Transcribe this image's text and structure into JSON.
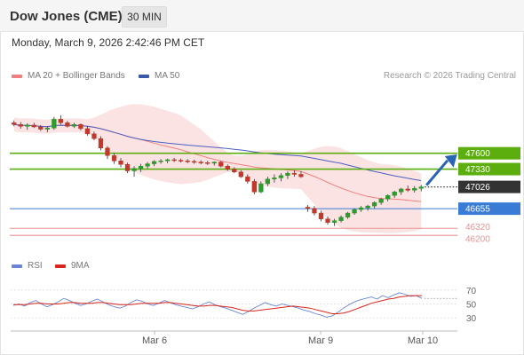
{
  "header": {
    "title": "Dow Jones (CME)",
    "timeframe_button": "30 MIN"
  },
  "datetime": "Monday, March 9, 2026 2:42:46 PM CET",
  "price_legend": {
    "bollinger_label": "MA 20 + Bollinger Bands",
    "ma50_label": "MA 50"
  },
  "copyright": "Research © 2026 Trading Central",
  "rsi_legend": {
    "rsi_label": "RSI",
    "ma_label": "9MA"
  },
  "colors": {
    "up_candle": "#2d9b2d",
    "down_candle": "#c0392b",
    "bollinger_fill": "#fcdede",
    "ma20": "#f08080",
    "ma50": "#4a5fc1",
    "green_level": "#5cad0e",
    "blue_level": "#3a7bd5",
    "red_level": "#e89494",
    "current_price_bg": "#333333",
    "forecast_arrow": "#2a64b4",
    "rsi_line": "#6b84d8",
    "rsi_ma": "#d9261c"
  },
  "chart_data": [
    {
      "type": "candlestick",
      "title": "Dow Jones (CME)",
      "timeframe": "30 MIN",
      "x_ticks": [
        "Mar 6",
        "Mar 9",
        "Mar 10"
      ],
      "ylim": [
        45900,
        48700
      ],
      "series": [
        {
          "name": "MA 20 + Bollinger Bands"
        },
        {
          "name": "MA 50"
        }
      ],
      "candles": [
        [
          48120,
          48160,
          48060,
          48090
        ],
        [
          48090,
          48130,
          48020,
          48060
        ],
        [
          48060,
          48110,
          48000,
          48080
        ],
        [
          48080,
          48120,
          48030,
          48050
        ],
        [
          48050,
          48080,
          47980,
          48010
        ],
        [
          48010,
          48060,
          47960,
          48030
        ],
        [
          48030,
          48220,
          48000,
          48180
        ],
        [
          48180,
          48250,
          48090,
          48120
        ],
        [
          48120,
          48150,
          48040,
          48060
        ],
        [
          48060,
          48120,
          48030,
          48090
        ],
        [
          48090,
          48110,
          47990,
          48020
        ],
        [
          48020,
          48060,
          47900,
          47930
        ],
        [
          47930,
          47970,
          47820,
          47850
        ],
        [
          47850,
          47890,
          47650,
          47690
        ],
        [
          47690,
          47720,
          47500,
          47560
        ],
        [
          47560,
          47600,
          47420,
          47470
        ],
        [
          47470,
          47520,
          47360,
          47410
        ],
        [
          47410,
          47440,
          47260,
          47300
        ],
        [
          47300,
          47380,
          47200,
          47340
        ],
        [
          47340,
          47420,
          47280,
          47380
        ],
        [
          47380,
          47450,
          47340,
          47420
        ],
        [
          47420,
          47480,
          47380,
          47460
        ],
        [
          47460,
          47500,
          47420,
          47470
        ],
        [
          47470,
          47510,
          47430,
          47490
        ],
        [
          47490,
          47520,
          47450,
          47480
        ],
        [
          47480,
          47510,
          47440,
          47470
        ],
        [
          47470,
          47500,
          47430,
          47460
        ],
        [
          47460,
          47490,
          47420,
          47450
        ],
        [
          47450,
          47480,
          47410,
          47440
        ],
        [
          47440,
          47470,
          47400,
          47430
        ],
        [
          47430,
          47460,
          47390,
          47450
        ],
        [
          47450,
          47470,
          47360,
          47380
        ],
        [
          47380,
          47410,
          47300,
          47330
        ],
        [
          47330,
          47360,
          47260,
          47280
        ],
        [
          47280,
          47310,
          47180,
          47200
        ],
        [
          47200,
          47240,
          47080,
          47120
        ],
        [
          47120,
          47160,
          46900,
          46940
        ],
        [
          46940,
          47120,
          46920,
          47080
        ],
        [
          47080,
          47200,
          47040,
          47160
        ],
        [
          47160,
          47240,
          47100,
          47180
        ],
        [
          47180,
          47260,
          47120,
          47220
        ],
        [
          47220,
          47290,
          47160,
          47260
        ],
        [
          47260,
          47310,
          47200,
          47240
        ],
        [
          47240,
          47290,
          47180,
          47200
        ],
        [
          46680,
          46720,
          46600,
          46660
        ],
        [
          46660,
          46700,
          46540,
          46580
        ],
        [
          46580,
          46620,
          46440,
          46480
        ],
        [
          46480,
          46520,
          46380,
          46420
        ],
        [
          46420,
          46480,
          46360,
          46450
        ],
        [
          46450,
          46540,
          46420,
          46510
        ],
        [
          46510,
          46600,
          46480,
          46580
        ],
        [
          46580,
          46660,
          46550,
          46640
        ],
        [
          46640,
          46700,
          46600,
          46670
        ],
        [
          46670,
          46720,
          46620,
          46700
        ],
        [
          46700,
          46780,
          46660,
          46760
        ],
        [
          46760,
          46840,
          46720,
          46820
        ],
        [
          46820,
          46900,
          46780,
          46880
        ],
        [
          46880,
          46960,
          46840,
          46940
        ],
        [
          46940,
          47010,
          46890,
          46990
        ],
        [
          46990,
          47050,
          46940,
          46970
        ],
        [
          46970,
          47040,
          46930,
          47000
        ],
        [
          47000,
          47060,
          46950,
          47026
        ]
      ],
      "price_levels": [
        {
          "label": "47600",
          "value": 47600,
          "kind": "resistance"
        },
        {
          "label": "47330",
          "value": 47330,
          "kind": "resistance"
        },
        {
          "label": "47026",
          "value": 47026,
          "kind": "current"
        },
        {
          "label": "46655",
          "value": 46655,
          "kind": "support"
        },
        {
          "label": "46320",
          "value": 46320,
          "kind": "support"
        },
        {
          "label": "46200",
          "value": 46200,
          "kind": "support"
        }
      ],
      "forecast_arrow": {
        "from": 47026,
        "to": 47600,
        "direction": "up"
      }
    },
    {
      "type": "line",
      "name": "RSI",
      "ylim": [
        15,
        85
      ],
      "y_ticks": [
        70,
        50,
        30
      ],
      "x_ticks": [
        "Mar 6",
        "Mar 9",
        "Mar 10"
      ],
      "series": [
        {
          "name": "RSI",
          "values": [
            48,
            50,
            47,
            52,
            55,
            50,
            46,
            49,
            53,
            58,
            55,
            51,
            48,
            50,
            54,
            57,
            53,
            49,
            46,
            44,
            47,
            52,
            56,
            54,
            50,
            48,
            51,
            55,
            52,
            49,
            47,
            45,
            43,
            46,
            50,
            53,
            49,
            46,
            44,
            41,
            38,
            35,
            39,
            44,
            48,
            52,
            49,
            47,
            50,
            48,
            46,
            44,
            41,
            39,
            36,
            34,
            31,
            33,
            38,
            44,
            49,
            53,
            56,
            58,
            60,
            57,
            62,
            59,
            63,
            66,
            64,
            61,
            62,
            58
          ]
        },
        {
          "name": "9MA",
          "values": [
            49,
            49,
            49,
            50,
            51,
            51,
            50,
            50,
            50,
            51,
            52,
            52,
            51,
            51,
            51,
            52,
            52,
            51,
            50,
            49,
            49,
            49,
            50,
            51,
            51,
            51,
            51,
            52,
            52,
            51,
            50,
            49,
            48,
            47,
            47,
            48,
            48,
            47,
            46,
            45,
            43,
            41,
            40,
            40,
            41,
            42,
            43,
            44,
            45,
            46,
            47,
            46,
            45,
            44,
            42,
            40,
            38,
            36,
            36,
            37,
            39,
            42,
            45,
            48,
            51,
            53,
            55,
            57,
            58,
            60,
            61,
            62,
            62,
            62
          ]
        }
      ]
    }
  ]
}
